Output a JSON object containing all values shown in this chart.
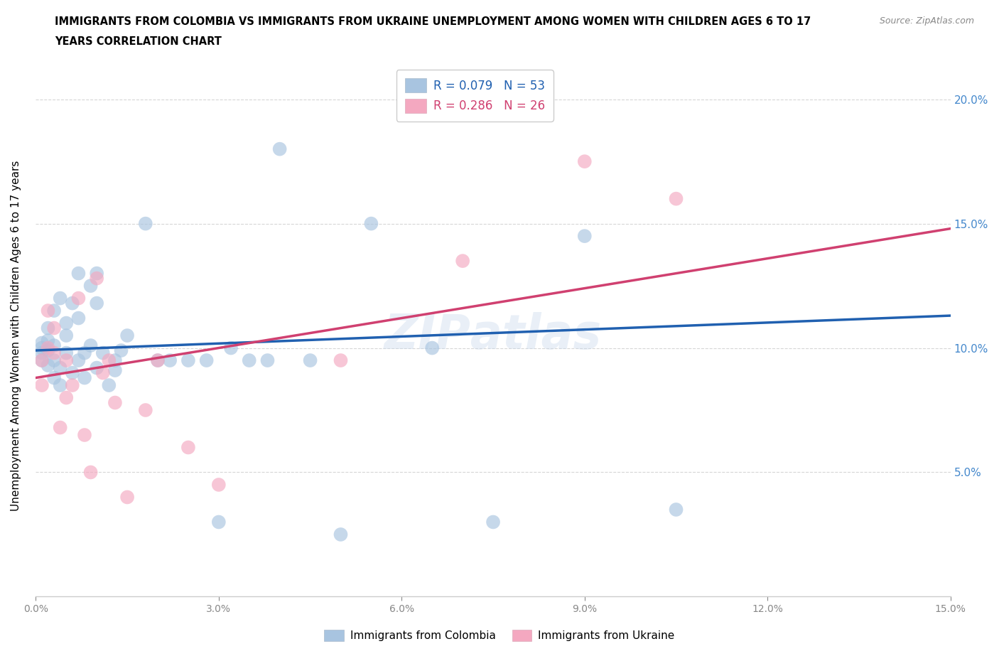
{
  "title_line1": "IMMIGRANTS FROM COLOMBIA VS IMMIGRANTS FROM UKRAINE UNEMPLOYMENT AMONG WOMEN WITH CHILDREN AGES 6 TO 17",
  "title_line2": "YEARS CORRELATION CHART",
  "source": "Source: ZipAtlas.com",
  "ylabel": "Unemployment Among Women with Children Ages 6 to 17 years",
  "r_colombia": 0.079,
  "n_colombia": 53,
  "r_ukraine": 0.286,
  "n_ukraine": 26,
  "color_colombia": "#a8c4e0",
  "color_ukraine": "#f4a8c0",
  "line_color_colombia": "#2060b0",
  "line_color_ukraine": "#d04070",
  "colombia_x": [
    0.001,
    0.001,
    0.001,
    0.001,
    0.002,
    0.002,
    0.002,
    0.002,
    0.003,
    0.003,
    0.003,
    0.003,
    0.004,
    0.004,
    0.004,
    0.005,
    0.005,
    0.005,
    0.006,
    0.006,
    0.007,
    0.007,
    0.007,
    0.008,
    0.008,
    0.009,
    0.009,
    0.01,
    0.01,
    0.01,
    0.011,
    0.012,
    0.013,
    0.013,
    0.014,
    0.015,
    0.018,
    0.02,
    0.022,
    0.025,
    0.028,
    0.03,
    0.032,
    0.035,
    0.038,
    0.04,
    0.045,
    0.05,
    0.055,
    0.065,
    0.075,
    0.09,
    0.105
  ],
  "colombia_y": [
    0.1,
    0.098,
    0.095,
    0.102,
    0.108,
    0.099,
    0.093,
    0.103,
    0.088,
    0.095,
    0.115,
    0.101,
    0.085,
    0.092,
    0.12,
    0.11,
    0.105,
    0.098,
    0.09,
    0.118,
    0.112,
    0.095,
    0.13,
    0.088,
    0.098,
    0.125,
    0.101,
    0.092,
    0.13,
    0.118,
    0.098,
    0.085,
    0.095,
    0.091,
    0.099,
    0.105,
    0.15,
    0.095,
    0.095,
    0.095,
    0.095,
    0.03,
    0.1,
    0.095,
    0.095,
    0.18,
    0.095,
    0.025,
    0.15,
    0.1,
    0.03,
    0.145,
    0.035
  ],
  "ukraine_x": [
    0.001,
    0.001,
    0.002,
    0.002,
    0.003,
    0.003,
    0.004,
    0.005,
    0.005,
    0.006,
    0.007,
    0.008,
    0.009,
    0.01,
    0.011,
    0.012,
    0.013,
    0.015,
    0.018,
    0.02,
    0.025,
    0.03,
    0.05,
    0.07,
    0.09,
    0.105
  ],
  "ukraine_y": [
    0.085,
    0.095,
    0.115,
    0.1,
    0.098,
    0.108,
    0.068,
    0.08,
    0.095,
    0.085,
    0.12,
    0.065,
    0.05,
    0.128,
    0.09,
    0.095,
    0.078,
    0.04,
    0.075,
    0.095,
    0.06,
    0.045,
    0.095,
    0.135,
    0.175,
    0.16
  ],
  "xmin": 0.0,
  "xmax": 0.15,
  "ymin": 0.0,
  "ymax": 0.21,
  "yticks": [
    0.05,
    0.1,
    0.15,
    0.2
  ],
  "xticks": [
    0.0,
    0.03,
    0.06,
    0.09,
    0.12,
    0.15
  ],
  "grid_color": "#cccccc",
  "background_color": "#ffffff"
}
